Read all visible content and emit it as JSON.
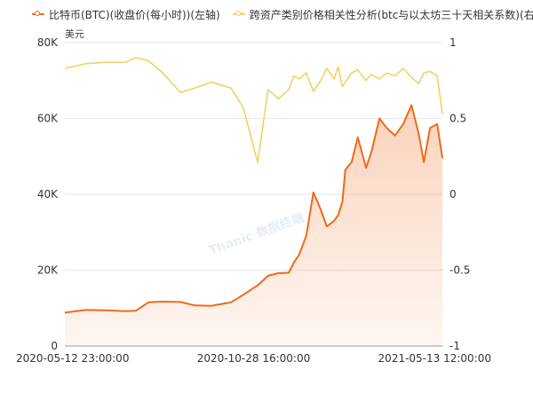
{
  "chart_data": {
    "type": "line",
    "legend_position": "top-left",
    "legend": [
      {
        "label": "比特币(BTC)(收盘价(每小时))(左轴)",
        "color": "#ee6a1b"
      },
      {
        "label": "跨资产类别价格相关性分析(btc与以太坊三十天相关系数)(右轴)",
        "color": "#f3cd5e"
      }
    ],
    "left_axis_unit": "美元",
    "left_axis": {
      "ylim": [
        0,
        80000
      ],
      "tick_labels": [
        "0",
        "20K",
        "40K",
        "60K",
        "80K"
      ]
    },
    "right_axis": {
      "ylim": [
        -1,
        1
      ],
      "tick_labels": [
        "-1",
        "-0.5",
        "0",
        "0.5",
        "1"
      ]
    },
    "x_tick_labels": [
      "2020-05-12 23:00:00",
      "2020-10-28 16:00:00",
      "2021-05-13 12:00:00"
    ],
    "grid": true,
    "watermark": "Thanic 数据终端",
    "x": [
      "2020-05-12",
      "2020-06-01",
      "2020-06-20",
      "2020-07-10",
      "2020-07-20",
      "2020-08-01",
      "2020-08-15",
      "2020-09-01",
      "2020-09-15",
      "2020-10-01",
      "2020-10-20",
      "2020-11-01",
      "2020-11-15",
      "2020-11-25",
      "2020-12-05",
      "2020-12-15",
      "2020-12-20",
      "2020-12-25",
      "2021-01-01",
      "2021-01-08",
      "2021-01-15",
      "2021-01-21",
      "2021-01-28",
      "2021-02-01",
      "2021-02-05",
      "2021-02-08",
      "2021-02-14",
      "2021-02-20",
      "2021-02-28",
      "2021-03-05",
      "2021-03-13",
      "2021-03-20",
      "2021-03-28",
      "2021-04-05",
      "2021-04-13",
      "2021-04-20",
      "2021-04-25",
      "2021-05-01",
      "2021-05-08",
      "2021-05-13"
    ],
    "series": [
      {
        "name": "比特币(BTC)(收盘价(每小时))(左轴)",
        "axis": "left",
        "color": "#ee6a1b",
        "values": [
          8800,
          9500,
          9400,
          9200,
          9300,
          11500,
          11700,
          11600,
          10700,
          10600,
          11500,
          13500,
          16000,
          18500,
          19200,
          19300,
          22000,
          24000,
          29000,
          40500,
          36000,
          31500,
          33000,
          34500,
          38000,
          46500,
          48500,
          55000,
          47000,
          51000,
          60000,
          57500,
          55500,
          58500,
          63500,
          56000,
          48500,
          57500,
          58500,
          49500
        ]
      },
      {
        "name": "跨资产类别价格相关性分析(btc与以太坊三十天相关系数)(右轴)",
        "axis": "right",
        "color": "#f3cd5e",
        "values": [
          0.83,
          0.86,
          0.87,
          0.87,
          0.9,
          0.88,
          0.8,
          0.67,
          0.7,
          0.74,
          0.7,
          0.57,
          0.21,
          0.69,
          0.63,
          0.69,
          0.78,
          0.76,
          0.8,
          0.68,
          0.75,
          0.83,
          0.76,
          0.84,
          0.71,
          0.74,
          0.8,
          0.82,
          0.75,
          0.79,
          0.76,
          0.8,
          0.78,
          0.83,
          0.77,
          0.73,
          0.8,
          0.81,
          0.78,
          0.53
        ]
      }
    ]
  }
}
